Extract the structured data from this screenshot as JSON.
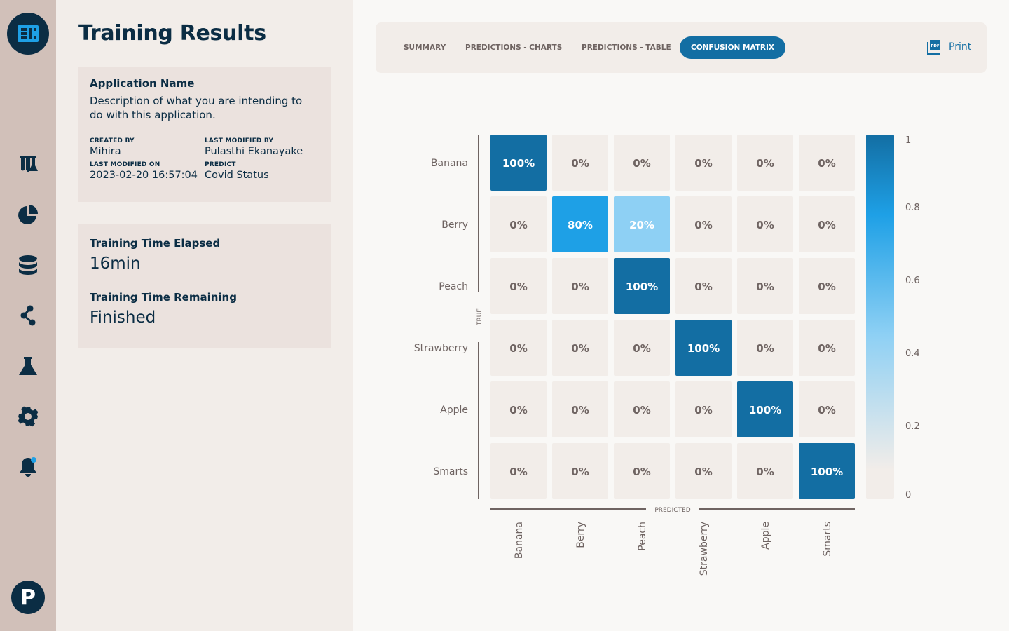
{
  "app": {
    "logo_text": "EI",
    "user_initial": "P",
    "nav": [
      {
        "name": "experiments",
        "icon": "flask-rack-icon"
      },
      {
        "name": "analytics",
        "icon": "pie-chart-icon"
      },
      {
        "name": "data",
        "icon": "database-icon"
      },
      {
        "name": "sharing",
        "icon": "share-icon"
      },
      {
        "name": "lab",
        "icon": "flask-icon"
      },
      {
        "name": "settings",
        "icon": "gear-icon"
      },
      {
        "name": "notifications",
        "icon": "bell-icon"
      }
    ]
  },
  "page": {
    "title": "Training Results"
  },
  "application": {
    "name": "Application Name",
    "description": "Description of what you are intending to do with this application.",
    "created_by_label": "CREATED BY",
    "created_by": "Mihira",
    "last_modified_by_label": "LAST MODIFIED BY",
    "last_modified_by": "Pulasthi Ekanayake",
    "last_modified_on_label": "LAST MODIFIED ON",
    "last_modified_on": "2023-02-20 16:57:04",
    "predict_label": "PREDICT",
    "predict": "Covid Status"
  },
  "training": {
    "elapsed_label": "Training Time Elapsed",
    "elapsed": "16min",
    "remaining_label": "Training Time Remaining",
    "remaining": "Finished"
  },
  "tabs": [
    {
      "label": "SUMMARY",
      "active": false
    },
    {
      "label": "PREDICTIONS - CHARTS",
      "active": false
    },
    {
      "label": "PREDICTIONS - TABLE",
      "active": false
    },
    {
      "label": "CONFUSION MATRIX",
      "active": true
    }
  ],
  "print": {
    "label": "Print",
    "icon": "pdf-icon",
    "icon_text": "PDF"
  },
  "colors": {
    "dark": "#0b2d44",
    "accent": "#136ea3",
    "mid_blue": "#1ea0e6",
    "light_blue": "#8ed0f4",
    "empty_cell": "#f2ede9"
  },
  "chart_data": {
    "type": "heatmap",
    "rows": [
      "Banana",
      "Berry",
      "Peach",
      "Strawberry",
      "Apple",
      "Smarts"
    ],
    "columns": [
      "Banana",
      "Berry",
      "Peach",
      "Strawberry",
      "Apple",
      "Smarts"
    ],
    "values": [
      [
        1.0,
        0.0,
        0.0,
        0.0,
        0.0,
        0.0
      ],
      [
        0.0,
        0.8,
        0.2,
        0.0,
        0.0,
        0.0
      ],
      [
        0.0,
        0.0,
        1.0,
        0.0,
        0.0,
        0.0
      ],
      [
        0.0,
        0.0,
        0.0,
        1.0,
        0.0,
        0.0
      ],
      [
        0.0,
        0.0,
        0.0,
        0.0,
        1.0,
        0.0
      ],
      [
        0.0,
        0.0,
        0.0,
        0.0,
        0.0,
        1.0
      ]
    ],
    "cell_labels": [
      [
        "100%",
        "0%",
        "0%",
        "0%",
        "0%",
        "0%"
      ],
      [
        "0%",
        "80%",
        "20%",
        "0%",
        "0%",
        "0%"
      ],
      [
        "0%",
        "0%",
        "100%",
        "0%",
        "0%",
        "0%"
      ],
      [
        "0%",
        "0%",
        "0%",
        "100%",
        "0%",
        "0%"
      ],
      [
        "0%",
        "0%",
        "0%",
        "0%",
        "100%",
        "0%"
      ],
      [
        "0%",
        "0%",
        "0%",
        "0%",
        "0%",
        "100%"
      ]
    ],
    "ylabel": "TRUE",
    "xlabel": "PREDICTED",
    "colorbar_ticks": [
      "1",
      "0.8",
      "0.6",
      "0.4",
      "0.2",
      "0"
    ],
    "colorbar_tick_values": [
      1,
      0.8,
      0.6,
      0.4,
      0.2,
      0
    ],
    "colorbar_range": [
      0,
      1
    ]
  }
}
